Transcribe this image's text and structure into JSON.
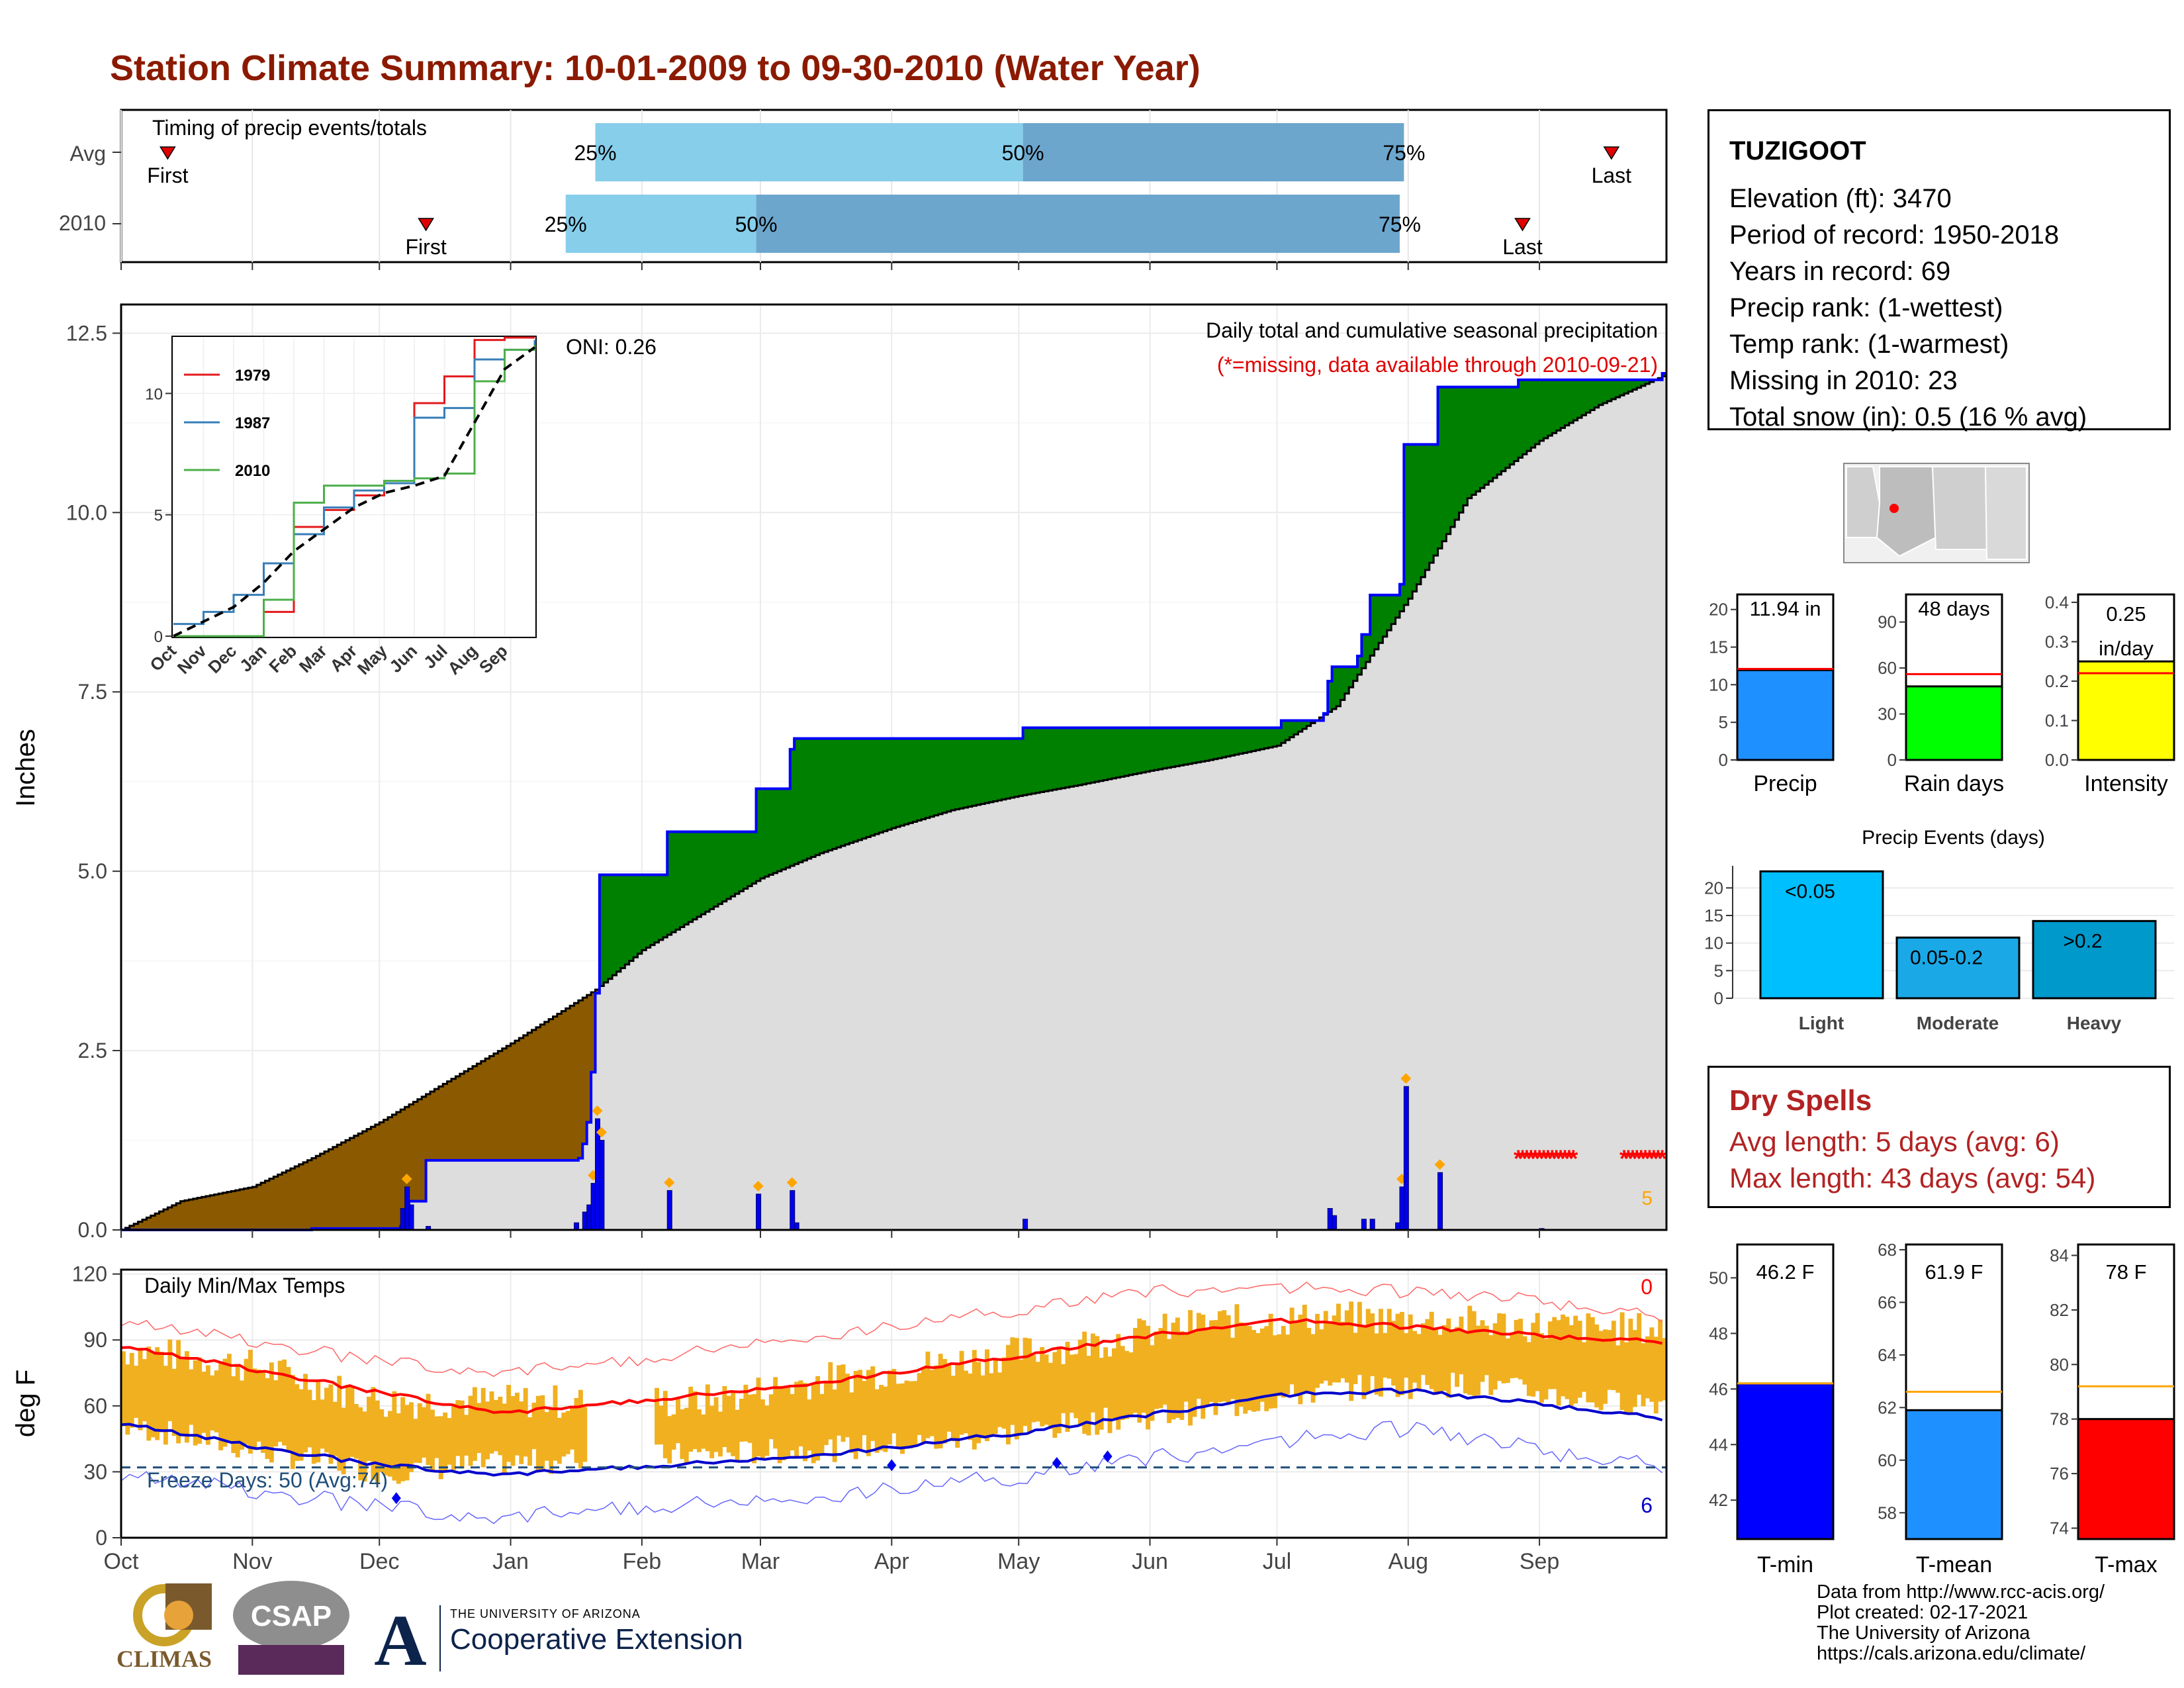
{
  "title": "Station Climate Summary: 10-01-2009 to 09-30-2010 (Water Year)",
  "months": [
    "Oct",
    "Nov",
    "Dec",
    "Jan",
    "Feb",
    "Mar",
    "Apr",
    "May",
    "Jun",
    "Jul",
    "Aug",
    "Sep"
  ],
  "timing": {
    "label": "Timing of precip events/totals",
    "rows": [
      {
        "name": "Avg",
        "first": "First",
        "last": "Last",
        "p25": "25%",
        "p50": "50%",
        "p75": "75%"
      },
      {
        "name": "2010",
        "first": "First",
        "last": "Last",
        "p25": "25%",
        "p50": "50%",
        "p75": "75%"
      }
    ]
  },
  "station": {
    "name": "TUZIGOOT",
    "elevation": "Elevation (ft): 3470",
    "period": "Period of record: 1950-2018",
    "years": "Years in record: 69",
    "precip_rank": "Precip rank:  (1-wettest)",
    "temp_rank": "Temp rank:  (1-warmest)",
    "missing": "Missing in 2010: 23",
    "snow": "Total snow (in): 0.5 (16 % avg)"
  },
  "precip_panel": {
    "ylabel": "Inches",
    "yticks": [
      "0.0",
      "2.5",
      "5.0",
      "7.5",
      "10.0",
      "12.5"
    ],
    "header": "Daily total and cumulative seasonal precipitation",
    "missing_note": "(*=missing, data available through 2010-09-21)",
    "oni": "ONI: 0.26",
    "corner_count": "5"
  },
  "inset": {
    "legend": [
      "1979",
      "1987",
      "2010"
    ],
    "yticks": [
      "0",
      "5",
      "10"
    ],
    "xticks": [
      "Oct",
      "Nov",
      "Dec",
      "Jan",
      "Feb",
      "Mar",
      "Apr",
      "May",
      "Jun",
      "Jul",
      "Aug",
      "Sep"
    ]
  },
  "temp_panel": {
    "ylabel": "deg F",
    "label": "Daily Min/Max Temps",
    "yticks": [
      "0",
      "30",
      "60",
      "90",
      "120"
    ],
    "freeze": "Freeze Days: 50 (Avg:74)",
    "top_count": "0",
    "bottom_count": "6"
  },
  "mini_bars": {
    "precip": {
      "label": "Precip",
      "value_label": "11.94 in",
      "yticks": [
        "0",
        "5",
        "10",
        "15",
        "20"
      ]
    },
    "raindays": {
      "label": "Rain days",
      "value_label": "48 days",
      "yticks": [
        "0",
        "30",
        "60",
        "90"
      ]
    },
    "intensity": {
      "label": "Intensity",
      "value_label_1": "0.25",
      "value_label_2": "in/day",
      "yticks": [
        "0.0",
        "0.1",
        "0.2",
        "0.3",
        "0.4"
      ]
    }
  },
  "events": {
    "title": "Precip Events (days)",
    "yticks": [
      "0",
      "5",
      "10",
      "15",
      "20"
    ],
    "bars": [
      {
        "label": "Light",
        "inner": "<0.05"
      },
      {
        "label": "Moderate",
        "inner": "0.05-0.2"
      },
      {
        "label": "Heavy",
        "inner": ">0.2"
      }
    ]
  },
  "dry_spells": {
    "title": "Dry Spells",
    "avg": "Avg length: 5 days (avg: 6)",
    "max": "Max length: 43 days (avg: 54)"
  },
  "temp_bars": {
    "tmin": {
      "label": "T-min",
      "value_label": "46.2 F",
      "yticks": [
        "42",
        "44",
        "46",
        "48",
        "50"
      ]
    },
    "tmean": {
      "label": "T-mean",
      "value_label": "61.9 F",
      "yticks": [
        "58",
        "60",
        "62",
        "64",
        "66",
        "68"
      ]
    },
    "tmax": {
      "label": "T-max",
      "value_label": "78 F",
      "yticks": [
        "74",
        "76",
        "78",
        "80",
        "82",
        "84"
      ]
    }
  },
  "logos": {
    "climas": "CLIMAS",
    "csap": "CSAP",
    "ua_small": "THE UNIVERSITY OF ARIZONA",
    "ua_big": "Cooperative Extension"
  },
  "credits": [
    "Data from http://www.rcc-acis.org/",
    "Plot created: 02-17-2021",
    "The University of Arizona",
    "https://cals.arizona.edu/climate/"
  ],
  "colors": {
    "title": "#8B1A00",
    "surplus": "#008000",
    "deficit": "#8B5A00",
    "normal_fill": "#DDDDDD",
    "observed_line": "#0000FF",
    "tmax_avg": "#FF0000",
    "tmin_avg": "#0000CC",
    "daily_range": "#F0B020",
    "light_blue": "#87CEEB",
    "mid_blue": "#6CA6CD"
  },
  "chart_data": [
    {
      "type": "bar",
      "name": "timing",
      "categories": [
        "Avg",
        "2010"
      ],
      "series": [
        {
          "name": "25%",
          "values": [
            "2010-01-21",
            "2010-01-14"
          ]
        },
        {
          "name": "50%",
          "values": [
            "2010-05-02",
            "2010-02-28"
          ]
        },
        {
          "name": "75%",
          "values": [
            "2010-07-31",
            "2010-07-30"
          ]
        }
      ],
      "first": [
        "2009-10-12",
        "2009-12-12"
      ],
      "last": [
        "2010-09-18",
        "2010-08-28"
      ]
    },
    {
      "type": "area",
      "name": "cumulative_precip",
      "ylim": [
        0,
        12.9
      ],
      "observed_cumulative": [
        [
          "2009-10-01",
          0.0
        ],
        [
          "2009-11-15",
          0.02
        ],
        [
          "2009-12-06",
          0.05
        ],
        [
          "2009-12-08",
          0.4
        ],
        [
          "2009-12-12",
          0.97
        ],
        [
          "2010-01-15",
          0.97
        ],
        [
          "2010-01-17",
          1.0
        ],
        [
          "2010-01-18",
          1.2
        ],
        [
          "2010-01-19",
          1.5
        ],
        [
          "2010-01-20",
          2.2
        ],
        [
          "2010-01-21",
          3.3
        ],
        [
          "2010-01-22",
          4.95
        ],
        [
          "2010-02-06",
          4.95
        ],
        [
          "2010-02-07",
          5.55
        ],
        [
          "2010-02-27",
          5.55
        ],
        [
          "2010-02-28",
          6.15
        ],
        [
          "2010-03-07",
          6.15
        ],
        [
          "2010-03-08",
          6.7
        ],
        [
          "2010-03-09",
          6.85
        ],
        [
          "2010-05-01",
          6.85
        ],
        [
          "2010-05-02",
          7.0
        ],
        [
          "2010-07-02",
          7.1
        ],
        [
          "2010-07-12",
          7.2
        ],
        [
          "2010-07-13",
          7.65
        ],
        [
          "2010-07-14",
          7.85
        ],
        [
          "2010-07-20",
          8.0
        ],
        [
          "2010-07-21",
          8.3
        ],
        [
          "2010-07-23",
          8.85
        ],
        [
          "2010-07-30",
          9.0
        ],
        [
          "2010-07-31",
          10.95
        ],
        [
          "2010-08-08",
          11.75
        ],
        [
          "2010-08-27",
          11.85
        ],
        [
          "2010-09-30",
          11.94
        ]
      ],
      "normal_cumulative": [
        [
          "2009-10-01",
          0.0
        ],
        [
          "2009-10-15",
          0.4
        ],
        [
          "2009-11-01",
          0.6
        ],
        [
          "2009-11-15",
          1.0
        ],
        [
          "2009-12-01",
          1.5
        ],
        [
          "2009-12-15",
          2.0
        ],
        [
          "2010-01-01",
          2.6
        ],
        [
          "2010-01-21",
          3.35
        ],
        [
          "2010-02-01",
          3.9
        ],
        [
          "2010-02-15",
          4.4
        ],
        [
          "2010-03-01",
          4.9
        ],
        [
          "2010-03-15",
          5.25
        ],
        [
          "2010-04-01",
          5.6
        ],
        [
          "2010-04-15",
          5.85
        ],
        [
          "2010-05-01",
          6.05
        ],
        [
          "2010-05-15",
          6.2
        ],
        [
          "2010-06-01",
          6.4
        ],
        [
          "2010-06-15",
          6.55
        ],
        [
          "2010-07-01",
          6.75
        ],
        [
          "2010-07-15",
          7.3
        ],
        [
          "2010-08-01",
          8.8
        ],
        [
          "2010-08-15",
          10.2
        ],
        [
          "2010-09-01",
          11.0
        ],
        [
          "2010-09-15",
          11.5
        ],
        [
          "2010-09-30",
          11.9
        ]
      ],
      "daily_totals": [
        [
          "2009-12-06",
          0.3
        ],
        [
          "2009-12-07",
          0.6
        ],
        [
          "2009-12-08",
          0.35
        ],
        [
          "2009-12-12",
          0.05
        ],
        [
          "2010-01-16",
          0.1
        ],
        [
          "2010-01-18",
          0.25
        ],
        [
          "2010-01-19",
          0.35
        ],
        [
          "2010-01-20",
          0.65
        ],
        [
          "2010-01-21",
          1.55
        ],
        [
          "2010-01-22",
          1.25
        ],
        [
          "2010-02-07",
          0.55
        ],
        [
          "2010-02-28",
          0.5
        ],
        [
          "2010-03-08",
          0.55
        ],
        [
          "2010-03-09",
          0.1
        ],
        [
          "2010-05-02",
          0.15
        ],
        [
          "2010-07-13",
          0.3
        ],
        [
          "2010-07-14",
          0.2
        ],
        [
          "2010-07-21",
          0.15
        ],
        [
          "2010-07-23",
          0.15
        ],
        [
          "2010-07-29",
          0.1
        ],
        [
          "2010-07-30",
          0.6
        ],
        [
          "2010-07-31",
          2.0
        ],
        [
          "2010-08-08",
          0.8
        ],
        [
          "2010-09-01",
          0.02
        ]
      ],
      "missing_days": [
        "2010-08-27",
        "2010-08-28",
        "2010-08-29",
        "2010-08-30",
        "2010-08-31",
        "2010-09-01",
        "2010-09-02",
        "2010-09-03",
        "2010-09-04",
        "2010-09-05",
        "2010-09-06",
        "2010-09-07",
        "2010-09-08",
        "2010-09-09",
        "2010-09-21",
        "2010-09-22",
        "2010-09-23",
        "2010-09-24",
        "2010-09-25",
        "2010-09-26",
        "2010-09-27",
        "2010-09-28",
        "2010-09-29",
        "2010-09-30"
      ]
    },
    {
      "type": "line",
      "name": "inset_cumulative_by_year",
      "x": [
        "Oct",
        "Nov",
        "Dec",
        "Jan",
        "Feb",
        "Mar",
        "Apr",
        "May",
        "Jun",
        "Jul",
        "Aug",
        "Sep",
        "end"
      ],
      "ylim": [
        0,
        12.3
      ],
      "series": [
        {
          "name": "1979",
          "values": [
            0.0,
            0.0,
            0.0,
            1.0,
            4.5,
            5.2,
            5.8,
            6.3,
            9.6,
            10.7,
            12.2,
            12.3,
            12.3
          ]
        },
        {
          "name": "1987",
          "values": [
            0.5,
            1.0,
            1.7,
            3.0,
            4.2,
            5.3,
            6.0,
            6.3,
            9.0,
            9.4,
            11.4,
            11.8,
            12.2
          ]
        },
        {
          "name": "2010",
          "values": [
            0.0,
            0.0,
            0.0,
            1.5,
            5.5,
            6.2,
            6.2,
            6.4,
            6.5,
            6.7,
            10.5,
            11.8,
            12.0
          ]
        },
        {
          "name": "Avg",
          "values": [
            0.0,
            0.6,
            1.2,
            2.2,
            3.5,
            4.4,
            5.3,
            5.9,
            6.2,
            6.6,
            8.8,
            11.0,
            11.9
          ]
        }
      ]
    },
    {
      "type": "line",
      "name": "daily_temps",
      "ylim": [
        0,
        120
      ],
      "freeze_line": 32,
      "series": [
        {
          "name": "Avg max",
          "x": [
            "Oct",
            "Nov",
            "Dec",
            "Jan",
            "Feb",
            "Mar",
            "Apr",
            "May",
            "Jun",
            "Jul",
            "Aug",
            "Sep",
            "end"
          ],
          "values": [
            87,
            77,
            66,
            57,
            62,
            68,
            75,
            83,
            92,
            99,
            96,
            92,
            89
          ]
        },
        {
          "name": "Avg min",
          "x": [
            "Oct",
            "Nov",
            "Dec",
            "Jan",
            "Feb",
            "Mar",
            "Apr",
            "May",
            "Jun",
            "Jul",
            "Aug",
            "Sep",
            "end"
          ],
          "values": [
            52,
            42,
            33,
            29,
            32,
            36,
            41,
            48,
            56,
            65,
            67,
            61,
            54
          ]
        },
        {
          "name": "Record max",
          "x": [
            "Oct",
            "Nov",
            "Dec",
            "Jan",
            "Feb",
            "Mar",
            "Apr",
            "May",
            "Jun",
            "Jul",
            "Aug",
            "Sep",
            "end"
          ],
          "values": [
            98,
            90,
            80,
            76,
            80,
            90,
            96,
            104,
            112,
            114,
            112,
            108,
            100
          ]
        },
        {
          "name": "Record min",
          "x": [
            "Oct",
            "Nov",
            "Dec",
            "Jan",
            "Feb",
            "Mar",
            "Apr",
            "May",
            "Jun",
            "Jul",
            "Aug",
            "Sep",
            "end"
          ],
          "values": [
            28,
            22,
            14,
            10,
            13,
            18,
            22,
            28,
            36,
            44,
            50,
            40,
            32
          ]
        }
      ],
      "daily_high_mid": [
        [
          "2009-10-05",
          85
        ],
        [
          "2009-11-01",
          78
        ],
        [
          "2009-12-01",
          62
        ],
        [
          "2010-01-01",
          62
        ],
        [
          "2010-02-15",
          62
        ],
        [
          "2010-03-15",
          72
        ],
        [
          "2010-04-15",
          80
        ],
        [
          "2010-05-15",
          88
        ],
        [
          "2010-06-15",
          98
        ],
        [
          "2010-07-15",
          100
        ],
        [
          "2010-08-15",
          98
        ],
        [
          "2010-09-15",
          95
        ]
      ],
      "daily_low_mid": [
        [
          "2009-10-05",
          50
        ],
        [
          "2009-11-01",
          40
        ],
        [
          "2009-12-01",
          30
        ],
        [
          "2010-01-01",
          34
        ],
        [
          "2010-02-15",
          38
        ],
        [
          "2010-03-15",
          40
        ],
        [
          "2010-04-15",
          44
        ],
        [
          "2010-05-15",
          52
        ],
        [
          "2010-06-15",
          58
        ],
        [
          "2010-07-15",
          68
        ],
        [
          "2010-08-15",
          70
        ],
        [
          "2010-09-15",
          62
        ]
      ]
    },
    {
      "type": "bar",
      "name": "season_totals",
      "categories": [
        "Precip",
        "Rain days",
        "Intensity"
      ],
      "values": [
        11.94,
        48,
        0.25
      ],
      "averages": [
        12.1,
        56,
        0.22
      ],
      "ylims": [
        [
          0,
          22
        ],
        [
          0,
          108
        ],
        [
          0,
          0.42
        ]
      ]
    },
    {
      "type": "bar",
      "name": "precip_events",
      "categories": [
        "Light",
        "Moderate",
        "Heavy"
      ],
      "values": [
        23,
        11,
        14
      ],
      "ylim": [
        0,
        24
      ]
    },
    {
      "type": "bar",
      "name": "season_temps",
      "categories": [
        "T-min",
        "T-mean",
        "T-max"
      ],
      "values": [
        46.2,
        61.9,
        78
      ],
      "averages": [
        46.2,
        62.6,
        79.2
      ],
      "ylims": [
        [
          40.6,
          51.2
        ],
        [
          57,
          68.2
        ],
        [
          73.6,
          84.4
        ]
      ]
    }
  ]
}
